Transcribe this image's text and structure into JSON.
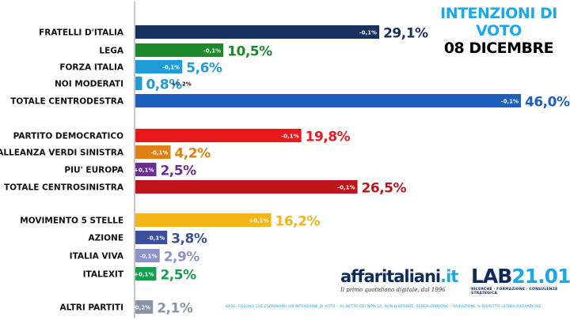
{
  "header": {
    "title_line1": "INTENZIONI DI",
    "title_line2": "VOTO",
    "date": "08 DICEMBRE"
  },
  "logos": {
    "affaritaliani": {
      "name_main": "affaritaliani",
      "name_ext": ".it",
      "tagline": "Il primo quotidiano digitale, dal 1996"
    },
    "lab": {
      "name_main": "LAB",
      "name_num": "21.01",
      "tagline": "RICERCHE · FORMAZIONE · CONSULENZE STRATEGICA"
    }
  },
  "footnote": "BASE: COLORO CHE ESPRIMONO UN'INTENZIONE DI VOTO – AL NETTO DEI NON SA, NON RISPONDE, SENZA OPINIONE – VARIAZIONE % RISPETTO ULTIMA RILEVAZIONE",
  "chart_data": {
    "type": "bar",
    "orientation": "horizontal",
    "title": "INTENZIONI DI VOTO",
    "subtitle": "08 DICEMBRE",
    "unit": "%",
    "xlim": [
      0,
      46.0
    ],
    "grid": false,
    "categories": [
      "FRATELLI D'ITALIA",
      "LEGA",
      "FORZA ITALIA",
      "NOI MODERATI",
      "TOTALE CENTRODESTRA",
      "PARTITO DEMOCRATICO",
      "ALLEANZA VERDI SINISTRA",
      "PIU' EUROPA",
      "TOTALE CENTROSINISTRA",
      "MOVIMENTO 5 STELLE",
      "AZIONE",
      "ITALIA VIVA",
      "ITALEXIT",
      "ALTRI PARTITI"
    ],
    "groups": [
      0,
      0,
      0,
      0,
      0,
      1,
      1,
      1,
      1,
      2,
      2,
      2,
      2,
      3
    ],
    "values": [
      29.1,
      10.5,
      5.6,
      0.8,
      46.0,
      19.8,
      4.2,
      2.5,
      26.5,
      16.2,
      3.8,
      2.9,
      2.5,
      2.1
    ],
    "value_labels": [
      "29,1%",
      "10,5%",
      "5,6%",
      "0,8%",
      "46,0%",
      "19,8%",
      "4,2%",
      "2,5%",
      "26,5%",
      "16,2%",
      "3,8%",
      "2,9%",
      "2,5%",
      "2,1%"
    ],
    "changes": [
      "-0,1%",
      "-0,1%",
      "-0,1%",
      "+0,2%",
      "-0,1%",
      "-0,1%",
      "-0,1%",
      "+0,1%",
      "-0,1%",
      "+0,1%",
      "-0,1%",
      "-0,1%",
      "+0,1%",
      "-0,2%"
    ],
    "change_outside": [
      false,
      false,
      false,
      true,
      false,
      false,
      false,
      false,
      false,
      false,
      false,
      false,
      false,
      false
    ],
    "colors": [
      "#16305f",
      "#1c8a2a",
      "#1f9bd7",
      "#1f9bd7",
      "#1d5fbf",
      "#e8181c",
      "#e07f12",
      "#6a2d92",
      "#c0121a",
      "#f5b519",
      "#3c4f9c",
      "#8a93cc",
      "#159e4b",
      "#8a93a6"
    ]
  }
}
